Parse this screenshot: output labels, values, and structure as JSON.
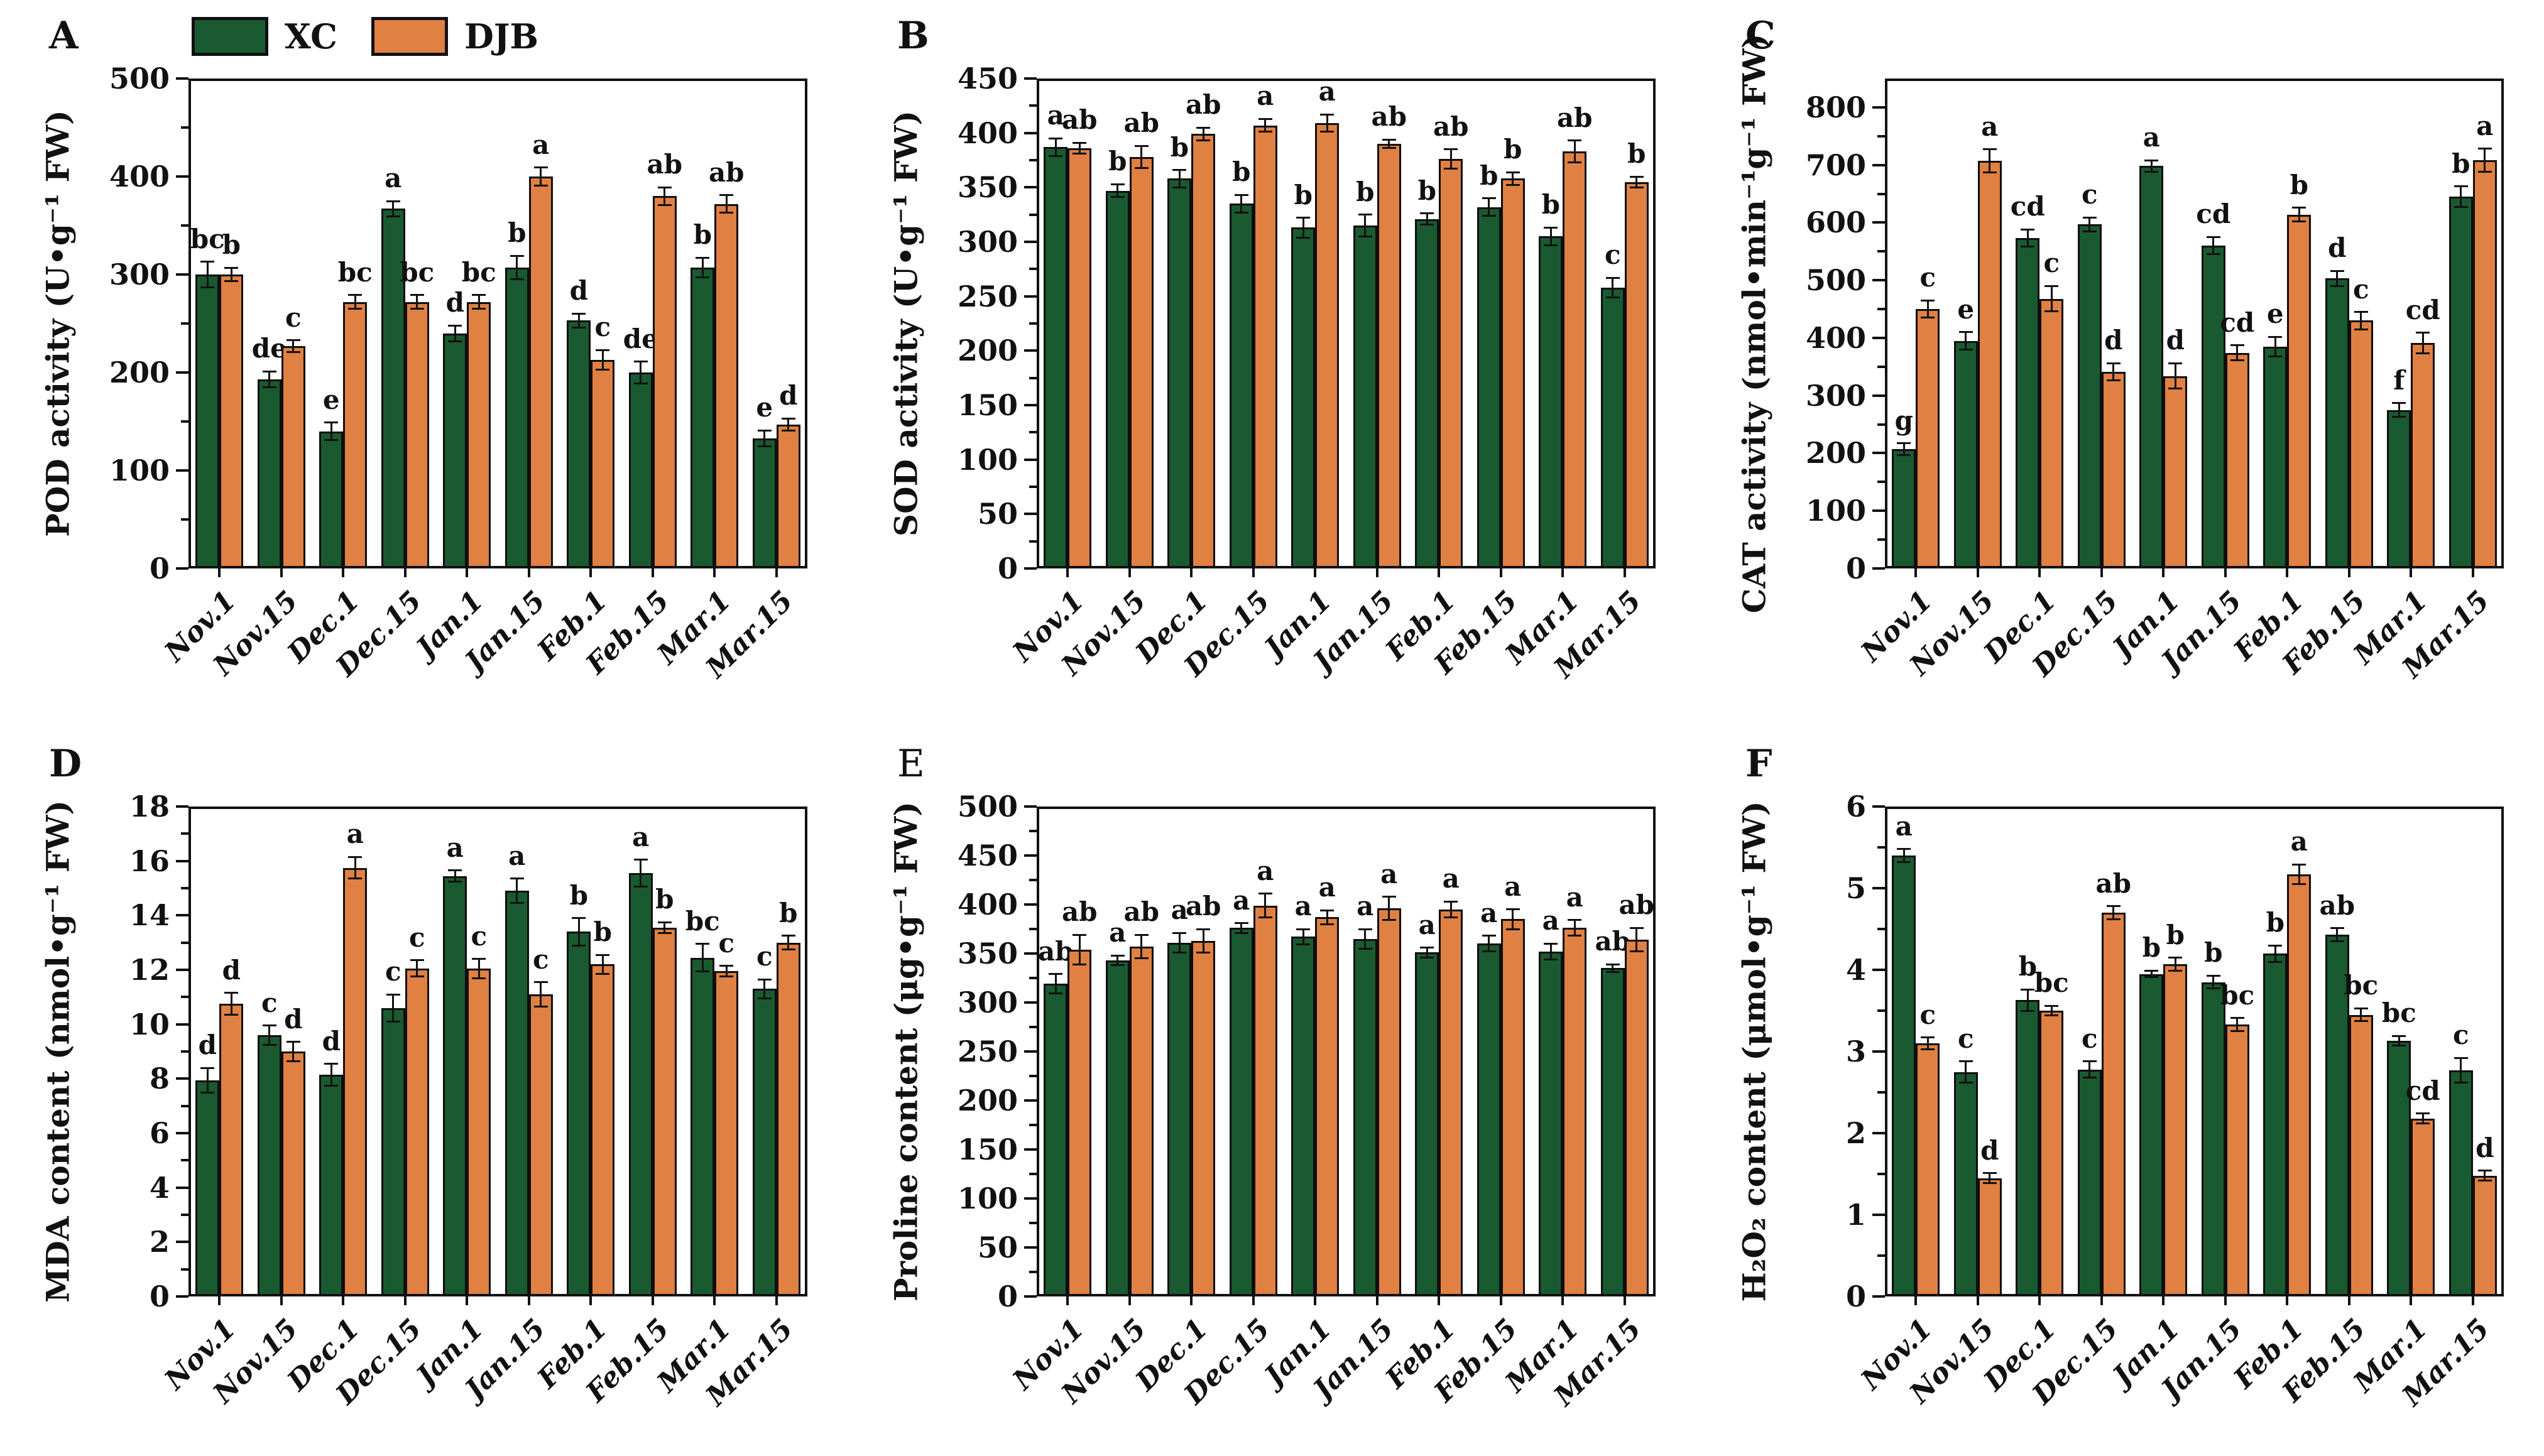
{
  "legend": {
    "items": [
      {
        "label": "XC",
        "color": "#1a5a30"
      },
      {
        "label": "DJB",
        "color": "#e08043"
      }
    ]
  },
  "categories": [
    "Nov.1",
    "Nov.15",
    "Dec.1",
    "Dec.15",
    "Jan.1",
    "Jan.15",
    "Feb.1",
    "Feb.15",
    "Mar.1",
    "Mar.15"
  ],
  "chart_data": [
    {
      "type": "bar",
      "panel_label": "A",
      "panel_label_bold": true,
      "ylabel": "POD activity (U•g⁻¹ FW)",
      "ylim": [
        0,
        500
      ],
      "scale_max": 500,
      "ytick_step": 100,
      "has_minor_ticks": true,
      "grid": false,
      "legend_position": "top-left-outside",
      "series": [
        {
          "name": "XC",
          "color": "#1a5a30",
          "values": [
            300,
            193,
            140,
            367,
            240,
            307,
            253,
            200,
            307,
            133
          ],
          "errors": [
            13,
            8,
            9,
            8,
            8,
            12,
            7,
            11,
            10,
            8
          ],
          "letters": [
            "bc",
            "de",
            "e",
            "a",
            "d",
            "b",
            "d",
            "de",
            "b",
            "e"
          ]
        },
        {
          "name": "DJB",
          "color": "#e08043",
          "values": [
            300,
            227,
            272,
            272,
            272,
            400,
            213,
            380,
            372,
            147
          ],
          "errors": [
            7,
            6,
            7,
            7,
            7,
            9,
            10,
            9,
            9,
            6
          ],
          "letters": [
            "b",
            "c",
            "bc",
            "bc",
            "bc",
            "a",
            "c",
            "ab",
            "ab",
            "d"
          ]
        }
      ]
    },
    {
      "type": "bar",
      "panel_label": "B",
      "panel_label_bold": true,
      "ylabel": "SOD activity (U•g⁻¹ FW)",
      "ylim": [
        0,
        450
      ],
      "scale_max": 450,
      "ytick_step": 50,
      "has_minor_ticks": true,
      "grid": false,
      "series": [
        {
          "name": "XC",
          "color": "#1a5a30",
          "values": [
            387,
            347,
            358,
            335,
            313,
            315,
            321,
            332,
            305,
            258
          ],
          "errors": [
            8,
            6,
            8,
            8,
            9,
            10,
            5,
            8,
            8,
            9
          ],
          "letters": [
            "a",
            "b",
            "b",
            "b",
            "b",
            "b",
            "b",
            "b",
            "b",
            "c"
          ]
        },
        {
          "name": "DJB",
          "color": "#e08043",
          "values": [
            386,
            378,
            399,
            407,
            409,
            390,
            376,
            358,
            383,
            355
          ],
          "errors": [
            5,
            10,
            6,
            6,
            8,
            4,
            9,
            6,
            10,
            5
          ],
          "letters": [
            "ab",
            "ab",
            "ab",
            "a",
            "a",
            "ab",
            "ab",
            "b",
            "ab",
            "b"
          ]
        }
      ]
    },
    {
      "type": "bar",
      "panel_label": "C",
      "panel_label_bold": true,
      "ylabel": "CAT activity (nmol•min⁻¹g⁻¹ FW)",
      "ylim": [
        0,
        800
      ],
      "scale_max": 850,
      "ytick_step": 100,
      "has_minor_ticks": true,
      "grid": false,
      "series": [
        {
          "name": "XC",
          "color": "#1a5a30",
          "values": [
            207,
            395,
            573,
            597,
            698,
            560,
            385,
            503,
            275,
            645
          ],
          "errors": [
            10,
            15,
            15,
            12,
            10,
            15,
            17,
            13,
            12,
            18
          ],
          "letters": [
            "g",
            "e",
            "cd",
            "c",
            "a",
            "cd",
            "e",
            "d",
            "f",
            "b"
          ]
        },
        {
          "name": "DJB",
          "color": "#e08043",
          "values": [
            450,
            707,
            468,
            341,
            334,
            374,
            614,
            430,
            391,
            708
          ],
          "errors": [
            15,
            20,
            22,
            15,
            22,
            13,
            12,
            15,
            18,
            20
          ],
          "letters": [
            "c",
            "a",
            "c",
            "d",
            "d",
            "cd",
            "b",
            "c",
            "cd",
            "a"
          ]
        }
      ]
    },
    {
      "type": "bar",
      "panel_label": "D",
      "panel_label_bold": true,
      "ylabel": "MDA content (nmol•g⁻¹ FW)",
      "ylim": [
        0,
        18
      ],
      "scale_max": 18,
      "ytick_step": 2,
      "has_minor_ticks": true,
      "grid": false,
      "series": [
        {
          "name": "XC",
          "color": "#1a5a30",
          "values": [
            7.95,
            9.6,
            8.15,
            10.6,
            15.45,
            14.9,
            13.4,
            15.55,
            12.45,
            11.3
          ],
          "errors": [
            0.45,
            0.35,
            0.4,
            0.5,
            0.2,
            0.45,
            0.5,
            0.5,
            0.5,
            0.35
          ],
          "letters": [
            "d",
            "c",
            "d",
            "c",
            "a",
            "a",
            "b",
            "a",
            "bc",
            "c"
          ]
        },
        {
          "name": "DJB",
          "color": "#e08043",
          "values": [
            10.75,
            9.0,
            15.75,
            12.05,
            12.05,
            11.1,
            12.2,
            13.55,
            11.95,
            13.0
          ],
          "errors": [
            0.4,
            0.35,
            0.4,
            0.3,
            0.35,
            0.45,
            0.35,
            0.2,
            0.2,
            0.25
          ],
          "letters": [
            "d",
            "d",
            "a",
            "c",
            "c",
            "c",
            "b",
            "b",
            "c",
            "b"
          ]
        }
      ]
    },
    {
      "type": "bar",
      "panel_label": "E",
      "panel_label_bold": false,
      "ylabel": "Proline content (μg•g⁻¹ FW)",
      "ylim": [
        0,
        500
      ],
      "scale_max": 500,
      "ytick_step": 50,
      "has_minor_ticks": true,
      "grid": false,
      "series": [
        {
          "name": "XC",
          "color": "#1a5a30",
          "values": [
            319,
            343,
            361,
            376,
            367,
            365,
            351,
            360,
            352,
            335
          ],
          "errors": [
            10,
            5,
            10,
            5,
            8,
            10,
            5,
            8,
            8,
            4
          ],
          "letters": [
            "ab",
            "a",
            "a",
            "a",
            "a",
            "a",
            "a",
            "a",
            "a",
            "ab"
          ]
        },
        {
          "name": "DJB",
          "color": "#e08043",
          "values": [
            354,
            357,
            363,
            399,
            387,
            396,
            395,
            385,
            376,
            364
          ],
          "errors": [
            15,
            12,
            12,
            12,
            7,
            12,
            8,
            10,
            8,
            12
          ],
          "letters": [
            "ab",
            "ab",
            "ab",
            "a",
            "a",
            "a",
            "a",
            "a",
            "a",
            "ab"
          ]
        }
      ]
    },
    {
      "type": "bar",
      "panel_label": "F",
      "panel_label_bold": true,
      "ylabel": "H₂O₂ content (μmol•g⁻¹ FW)",
      "ylim": [
        0,
        6
      ],
      "scale_max": 6,
      "ytick_step": 1,
      "has_minor_ticks": true,
      "grid": false,
      "series": [
        {
          "name": "XC",
          "color": "#1a5a30",
          "values": [
            5.4,
            2.75,
            3.63,
            2.78,
            3.95,
            3.85,
            4.2,
            4.43,
            3.13,
            2.77
          ],
          "errors": [
            0.08,
            0.13,
            0.13,
            0.1,
            0.04,
            0.08,
            0.1,
            0.08,
            0.06,
            0.15
          ],
          "letters": [
            "a",
            "c",
            "b",
            "c",
            "b",
            "b",
            "b",
            "ab",
            "bc",
            "c"
          ]
        },
        {
          "name": "DJB",
          "color": "#e08043",
          "values": [
            3.1,
            1.45,
            3.5,
            4.7,
            4.07,
            3.33,
            5.17,
            3.45,
            2.18,
            1.48
          ],
          "errors": [
            0.07,
            0.06,
            0.06,
            0.08,
            0.08,
            0.08,
            0.12,
            0.08,
            0.06,
            0.06
          ],
          "letters": [
            "c",
            "d",
            "bc",
            "ab",
            "b",
            "bc",
            "a",
            "bc",
            "cd",
            "d"
          ]
        }
      ]
    }
  ]
}
